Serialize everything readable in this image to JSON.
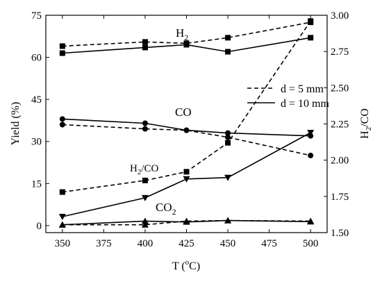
{
  "chart_data": {
    "type": "line",
    "xlabel": "T (",
    "xlabel_sup": "o",
    "xlabel_tail": "C)",
    "ylabel": "Yield (%)",
    "y2label_main": "H",
    "y2label_sub": "2",
    "y2label_tail": "/CO",
    "x_ticks": [
      "350",
      "375",
      "400",
      "425",
      "450",
      "475",
      "500"
    ],
    "y_ticks": [
      "0",
      "15",
      "30",
      "45",
      "60",
      "75"
    ],
    "y2_ticks": [
      "1.50",
      "1.75",
      "2.00",
      "2.25",
      "2.50",
      "2.75",
      "3.00"
    ],
    "xlim": [
      340,
      510
    ],
    "ylim": [
      -2.5,
      75
    ],
    "y2lim": [
      1.5,
      3.0
    ],
    "x": [
      350,
      400,
      425,
      450,
      500
    ],
    "legend": {
      "position": "right-middle",
      "entries": [
        {
          "label": "d = 5   mm",
          "style": "dashed"
        },
        {
          "label": "d = 10 mm",
          "style": "solid"
        }
      ]
    },
    "series_labels": {
      "h2_main": "H",
      "h2_sub": "2",
      "co": "CO",
      "h2co_main": "H",
      "h2co_sub": "2",
      "h2co_tail": "/CO",
      "co2_main": "CO",
      "co2_sub": "2"
    },
    "series": [
      {
        "name": "H2 (d = 5 mm)",
        "axis": "left",
        "style": "dashed",
        "marker": "square",
        "values": [
          64,
          65.5,
          65,
          67,
          72.5
        ]
      },
      {
        "name": "H2 (d = 10 mm)",
        "axis": "left",
        "style": "solid",
        "marker": "square",
        "values": [
          61.5,
          63.5,
          64.5,
          62,
          67
        ]
      },
      {
        "name": "CO (d = 5 mm)",
        "axis": "left",
        "style": "dashed",
        "marker": "circle",
        "values": [
          36,
          34.5,
          34,
          31.5,
          25
        ]
      },
      {
        "name": "CO (d = 10 mm)",
        "axis": "left",
        "style": "solid",
        "marker": "circle",
        "values": [
          38,
          36.5,
          34,
          33,
          32
        ]
      },
      {
        "name": "H2/CO (d = 5 mm)",
        "axis": "right",
        "style": "dashed",
        "marker": "square",
        "values": [
          1.78,
          1.86,
          1.92,
          2.12,
          2.96
        ]
      },
      {
        "name": "H2/CO (d = 10 mm)",
        "axis": "right",
        "style": "solid",
        "marker": "triangle-down",
        "values": [
          1.61,
          1.74,
          1.87,
          1.88,
          2.19
        ]
      },
      {
        "name": "CO2 (d = 5 mm)",
        "axis": "left",
        "style": "dashed",
        "marker": "triangle-up",
        "values": [
          0.3,
          0.3,
          1.6,
          1.8,
          1.6
        ]
      },
      {
        "name": "CO2 (d = 10 mm)",
        "axis": "left",
        "style": "solid",
        "marker": "triangle-up",
        "values": [
          0.3,
          1.6,
          1.3,
          1.8,
          1.4
        ]
      }
    ]
  }
}
